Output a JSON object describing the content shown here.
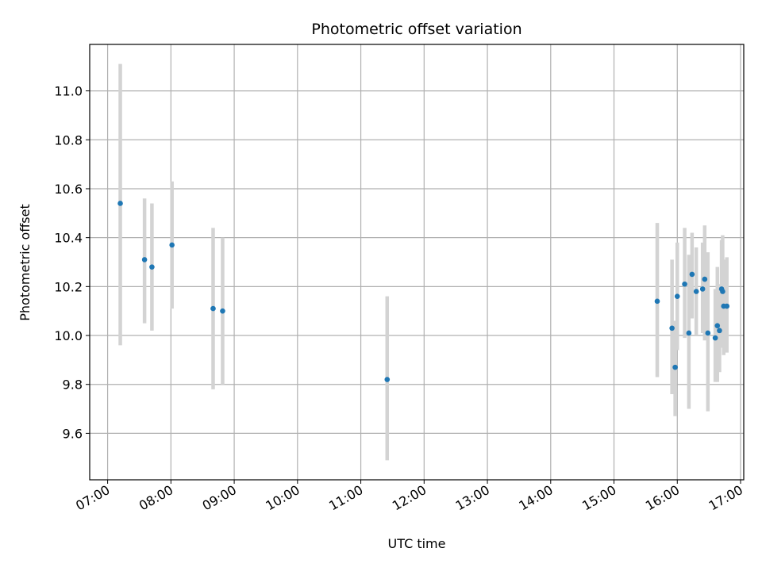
{
  "chart_data": {
    "type": "scatter",
    "title": "Photometric offset variation",
    "xlabel": "UTC time",
    "ylabel": "Photometric offset",
    "x_axis_type": "time",
    "xlim": [
      "06:43",
      "17:03"
    ],
    "ylim": [
      9.41,
      11.19
    ],
    "x_ticks": [
      "07:00",
      "08:00",
      "09:00",
      "10:00",
      "11:00",
      "12:00",
      "13:00",
      "14:00",
      "15:00",
      "16:00",
      "17:00"
    ],
    "y_ticks": [
      "9.6",
      "9.8",
      "10.0",
      "10.2",
      "10.4",
      "10.6",
      "10.8",
      "11.0"
    ],
    "grid": true,
    "legend": "none",
    "colors": {
      "point": "#1f77b4",
      "errorbar": "#d3d3d3",
      "grid": "#b0b0b0"
    },
    "points": [
      {
        "x": "07:12",
        "y": 10.54,
        "yerr_low": 9.96,
        "yerr_high": 11.11
      },
      {
        "x": "07:35",
        "y": 10.31,
        "yerr_low": 10.05,
        "yerr_high": 10.56
      },
      {
        "x": "07:42",
        "y": 10.28,
        "yerr_low": 10.02,
        "yerr_high": 10.54
      },
      {
        "x": "08:01",
        "y": 10.37,
        "yerr_low": 10.11,
        "yerr_high": 10.63
      },
      {
        "x": "08:40",
        "y": 10.11,
        "yerr_low": 9.78,
        "yerr_high": 10.44
      },
      {
        "x": "08:49",
        "y": 10.1,
        "yerr_low": 9.8,
        "yerr_high": 10.4
      },
      {
        "x": "11:25",
        "y": 9.82,
        "yerr_low": 9.49,
        "yerr_high": 10.16
      },
      {
        "x": "15:41",
        "y": 10.14,
        "yerr_low": 9.83,
        "yerr_high": 10.46
      },
      {
        "x": "15:55",
        "y": 10.03,
        "yerr_low": 9.76,
        "yerr_high": 10.31
      },
      {
        "x": "15:58",
        "y": 9.87,
        "yerr_low": 9.67,
        "yerr_high": 10.06
      },
      {
        "x": "16:00",
        "y": 10.16,
        "yerr_low": 9.94,
        "yerr_high": 10.38
      },
      {
        "x": "16:07",
        "y": 10.21,
        "yerr_low": 9.99,
        "yerr_high": 10.44
      },
      {
        "x": "16:11",
        "y": 10.01,
        "yerr_low": 9.7,
        "yerr_high": 10.33
      },
      {
        "x": "16:14",
        "y": 10.25,
        "yerr_low": 10.07,
        "yerr_high": 10.42
      },
      {
        "x": "16:18",
        "y": 10.18,
        "yerr_low": 10.0,
        "yerr_high": 10.36
      },
      {
        "x": "16:24",
        "y": 10.19,
        "yerr_low": 10.01,
        "yerr_high": 10.38
      },
      {
        "x": "16:26",
        "y": 10.23,
        "yerr_low": 9.98,
        "yerr_high": 10.45
      },
      {
        "x": "16:29",
        "y": 10.01,
        "yerr_low": 9.69,
        "yerr_high": 10.34
      },
      {
        "x": "16:36",
        "y": 9.99,
        "yerr_low": 9.81,
        "yerr_high": 10.19
      },
      {
        "x": "16:38",
        "y": 10.04,
        "yerr_low": 9.81,
        "yerr_high": 10.28
      },
      {
        "x": "16:40",
        "y": 10.02,
        "yerr_low": 9.85,
        "yerr_high": 10.21
      },
      {
        "x": "16:42",
        "y": 10.19,
        "yerr_low": 9.99,
        "yerr_high": 10.39
      },
      {
        "x": "16:43",
        "y": 10.18,
        "yerr_low": 9.95,
        "yerr_high": 10.41
      },
      {
        "x": "16:44",
        "y": 10.12,
        "yerr_low": 9.92,
        "yerr_high": 10.31
      },
      {
        "x": "16:47",
        "y": 10.12,
        "yerr_low": 9.93,
        "yerr_high": 10.32
      }
    ]
  }
}
